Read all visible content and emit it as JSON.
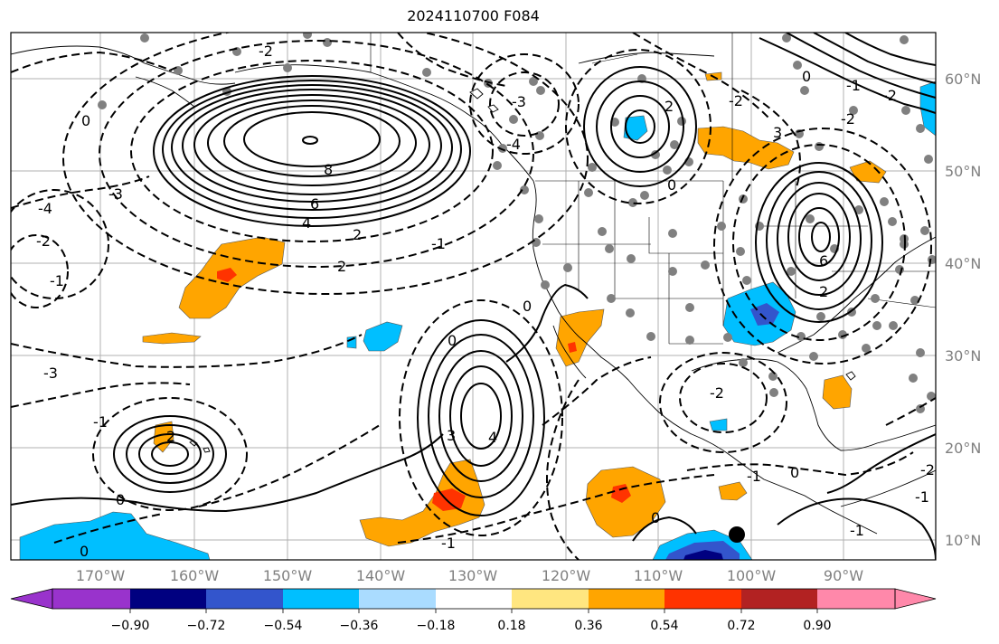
{
  "title": "2024110700 F084",
  "map": {
    "lat_labels": [
      "60°N",
      "50°N",
      "40°N",
      "30°N",
      "20°N",
      "10°N"
    ],
    "lon_labels": [
      "170°W",
      "160°W",
      "150°W",
      "140°W",
      "130°W",
      "120°W",
      "110°W",
      "100°W",
      "90°W"
    ],
    "contour_labels": [
      "8",
      "6",
      "4",
      "2",
      "2",
      "0",
      "-3",
      "-4",
      "-2",
      "-2",
      "-1",
      "-1",
      "0",
      "2",
      "3",
      "4",
      "0",
      "-1",
      "0",
      "-2",
      "-3",
      "-1",
      "0",
      "6",
      "2",
      "-1",
      "-2",
      "3",
      "-1",
      "-2",
      "-3",
      "-4",
      "2",
      "-2",
      "-1",
      "0",
      "-1",
      "-2",
      "0",
      "0",
      "0"
    ]
  },
  "colorbar": {
    "labels": [
      "−0.90",
      "−0.72",
      "−0.54",
      "−0.36",
      "−0.18",
      "0.18",
      "0.36",
      "0.54",
      "0.72",
      "0.90"
    ],
    "colors": [
      "#9933cc",
      "#000080",
      "#3355cc",
      "#00bfff",
      "#aadcff",
      "#ffffff",
      "#ffe680",
      "#ffa500",
      "#ff3300",
      "#b22222",
      "#ff88aa",
      "#ff88aa"
    ]
  }
}
